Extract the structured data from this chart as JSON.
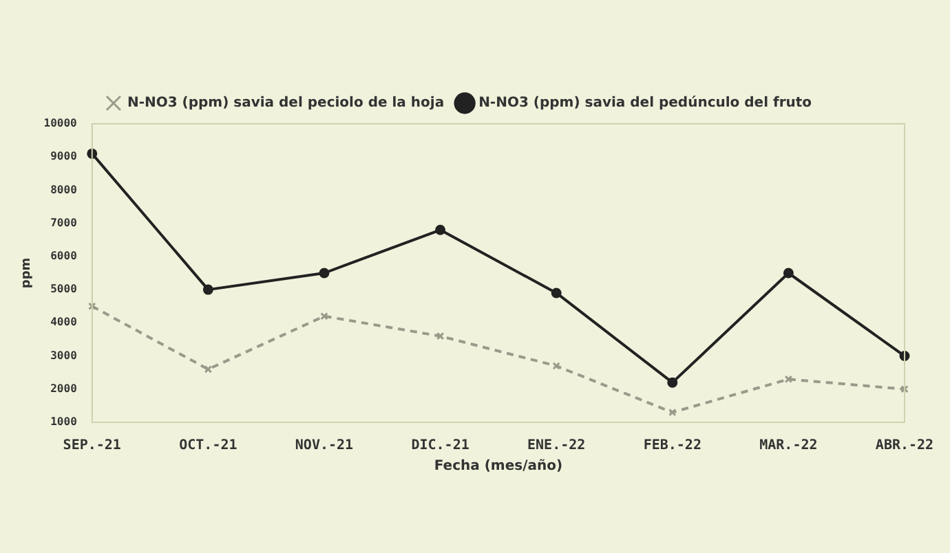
{
  "chart_data": {
    "type": "line",
    "xlabel": "Fecha (mes/año)",
    "ylabel": "ppm",
    "categories": [
      "SEP.-21",
      "OCT.-21",
      "NOV.-21",
      "DIC.-21",
      "ENE.-22",
      "FEB.-22",
      "MAR.-22",
      "ABR.-22"
    ],
    "series": [
      {
        "name": "N-NO3 (ppm) savia del peciolo de la hoja",
        "color": "#9a9a8a",
        "line_style": "dashed",
        "marker": "cross",
        "values": [
          4500,
          2600,
          4200,
          3600,
          2700,
          1300,
          2300,
          2000
        ]
      },
      {
        "name": "N-NO3 (ppm) savia del pedúnculo del fruto",
        "color": "#222222",
        "line_style": "solid",
        "marker": "circle",
        "values": [
          9100,
          5000,
          5500,
          6800,
          4900,
          2200,
          5500,
          3000
        ]
      }
    ],
    "ylim": [
      1000,
      10000
    ],
    "yticks": [
      1000,
      2000,
      3000,
      4000,
      5000,
      6000,
      7000,
      8000,
      9000,
      10000
    ],
    "grid": false,
    "legend": "top"
  }
}
